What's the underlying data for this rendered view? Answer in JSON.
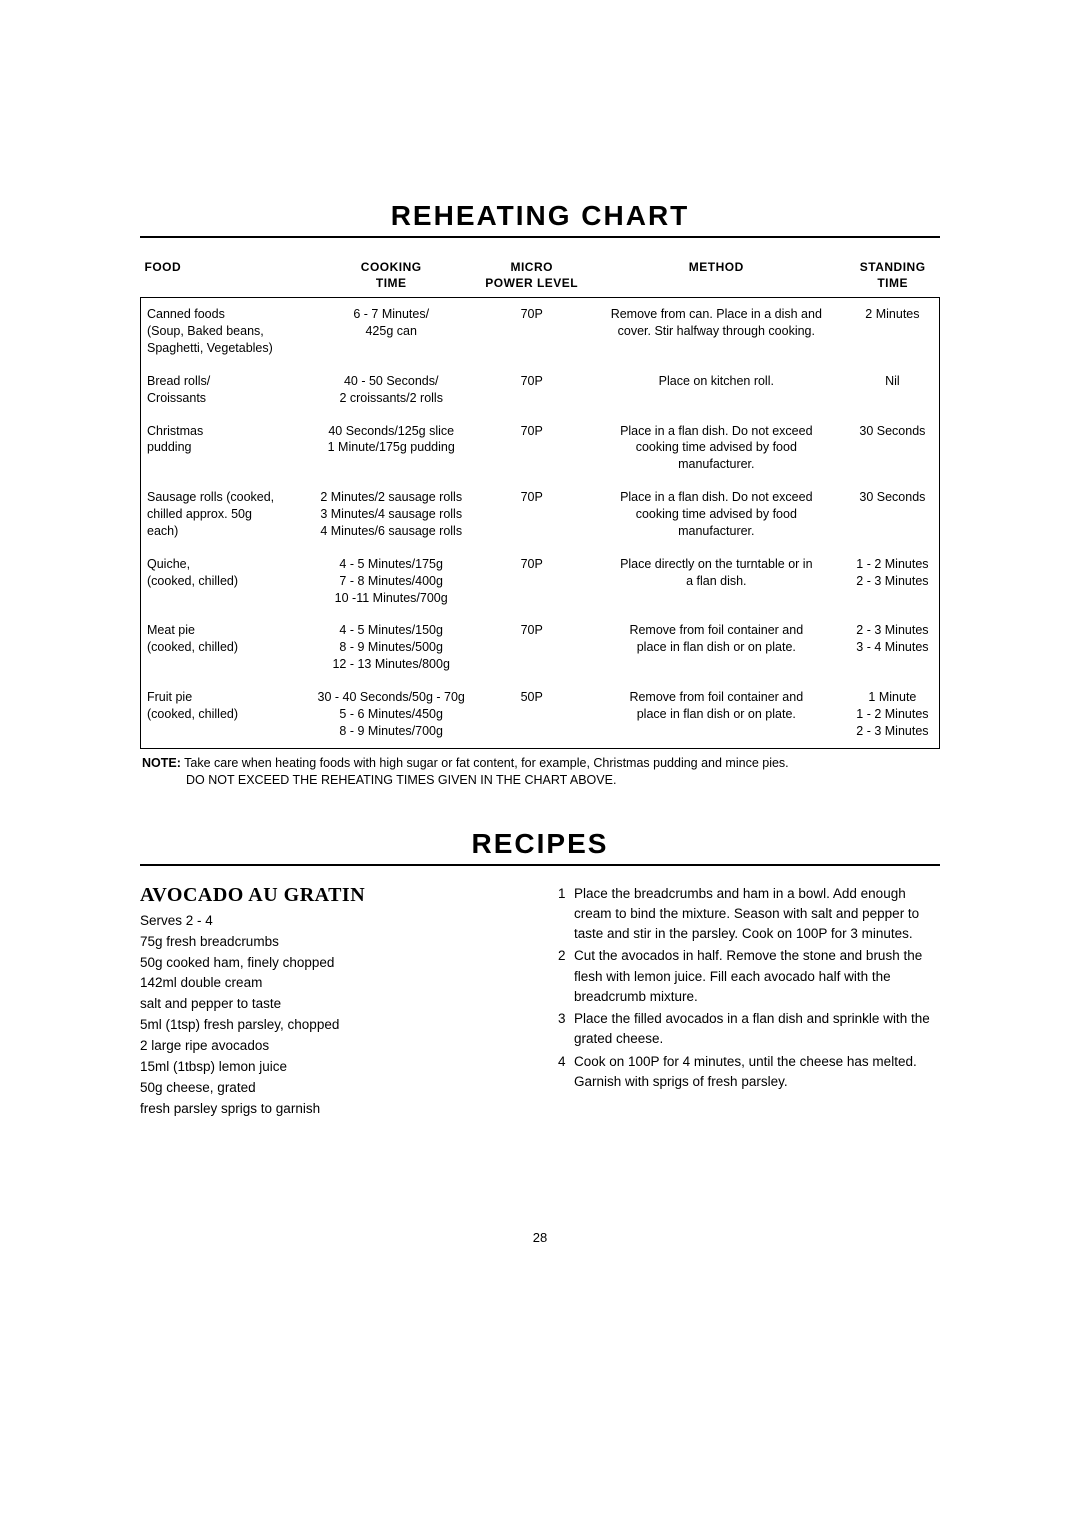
{
  "page": {
    "title1": "REHEATING CHART",
    "title2": "RECIPES",
    "pagenum": "28"
  },
  "chart": {
    "headers": {
      "food": "FOOD",
      "cooking": "COOKING\nTIME",
      "power": "MICRO\nPOWER LEVEL",
      "method": "METHOD",
      "standing": "STANDING\nTIME"
    },
    "rows": [
      {
        "food": "Canned foods\n(Soup, Baked beans,\nSpaghetti, Vegetables)",
        "cooking": "6 - 7 Minutes/\n425g can",
        "power": "70P",
        "method": "Remove from can. Place in a dish and\ncover. Stir halfway through cooking.",
        "standing": "2 Minutes"
      },
      {
        "food": "Bread rolls/\nCroissants",
        "cooking": "40 - 50 Seconds/\n2 croissants/2 rolls",
        "power": "70P",
        "method": "Place on kitchen roll.",
        "standing": "Nil"
      },
      {
        "food": "Christmas\npudding",
        "cooking": "40 Seconds/125g slice\n1 Minute/175g pudding",
        "power": "70P",
        "method": "Place in a flan dish. Do not exceed\ncooking time advised by food\nmanufacturer.",
        "standing": "30 Seconds"
      },
      {
        "food": "Sausage rolls (cooked,\nchilled approx. 50g\neach)",
        "cooking": "2 Minutes/2 sausage rolls\n3 Minutes/4 sausage rolls\n4 Minutes/6 sausage rolls",
        "power": "70P",
        "method": "Place in a flan dish. Do not exceed\ncooking time advised by food\nmanufacturer.",
        "standing": "30 Seconds"
      },
      {
        "food": "Quiche,\n(cooked, chilled)",
        "cooking": "4 - 5 Minutes/175g\n7 - 8 Minutes/400g\n10 -11 Minutes/700g",
        "power": "70P",
        "method": "Place directly on the turntable or in\na flan dish.",
        "standing": "1 - 2 Minutes\n2 - 3 Minutes"
      },
      {
        "food": "Meat pie\n(cooked, chilled)",
        "cooking": "4 - 5 Minutes/150g\n8 - 9 Minutes/500g\n12 - 13 Minutes/800g",
        "power": "70P",
        "method": "Remove from foil container and\nplace in  flan dish or on plate.",
        "standing": "2 - 3 Minutes\n3 - 4 Minutes"
      },
      {
        "food": "Fruit pie\n(cooked, chilled)",
        "cooking": "30 - 40 Seconds/50g - 70g\n5 - 6 Minutes/450g\n8 - 9 Minutes/700g",
        "power": "50P",
        "method": "Remove from foil container and\nplace in  flan dish or on plate.",
        "standing": "1 Minute\n1 - 2 Minutes\n2 - 3 Minutes"
      }
    ]
  },
  "note": {
    "label": "NOTE:",
    "line1": "Take care when heating foods with high sugar or fat content, for example, Christmas pudding and mince pies.",
    "line2": "DO NOT EXCEED THE REHEATING TIMES GIVEN IN THE CHART ABOVE."
  },
  "recipe": {
    "name": "AVOCADO AU GRATIN",
    "serves": "Serves 2 - 4",
    "ingredients": [
      "75g fresh breadcrumbs",
      "50g cooked ham, finely chopped",
      "142ml double cream",
      "salt and pepper to taste",
      "5ml (1tsp) fresh parsley, chopped",
      "2 large ripe avocados",
      "15ml (1tbsp) lemon juice",
      "50g cheese, grated",
      "fresh parsley sprigs to garnish"
    ],
    "steps": [
      "Place the breadcrumbs and ham in a bowl. Add enough cream to bind the mixture. Season with salt and pepper to taste and stir in the parsley. Cook on 100P for 3 minutes.",
      "Cut the avocados in half. Remove the stone and brush the flesh with lemon juice. Fill each avocado half with the breadcrumb mixture.",
      "Place the filled avocados in a flan dish and sprinkle with the grated cheese.",
      "Cook on 100P for 4 minutes, until the cheese has melted. Garnish with sprigs of fresh parsley."
    ]
  }
}
